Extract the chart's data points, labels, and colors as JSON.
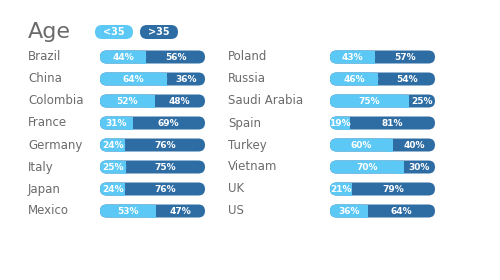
{
  "title": "Age",
  "legend": [
    "<35",
    ">35"
  ],
  "color_light": "#5BC8F5",
  "color_dark": "#2E6DA4",
  "left_countries": [
    "Brazil",
    "China",
    "Colombia",
    "France",
    "Germany",
    "Italy",
    "Japan",
    "Mexico"
  ],
  "left_lt35": [
    44,
    64,
    52,
    31,
    24,
    25,
    24,
    53
  ],
  "left_gt35": [
    56,
    36,
    48,
    69,
    76,
    75,
    76,
    47
  ],
  "right_countries": [
    "Poland",
    "Russia",
    "Saudi Arabia",
    "Spain",
    "Turkey",
    "Vietnam",
    "UK",
    "US"
  ],
  "right_lt35": [
    43,
    46,
    75,
    19,
    60,
    70,
    21,
    36
  ],
  "right_gt35": [
    57,
    54,
    25,
    81,
    40,
    30,
    79,
    64
  ],
  "bg_color": "#FFFFFF",
  "text_color": "#6B6B6B",
  "bar_text_fontsize": 6.5,
  "label_fontsize": 8.5,
  "title_fontsize": 16,
  "legend_fontsize": 7
}
